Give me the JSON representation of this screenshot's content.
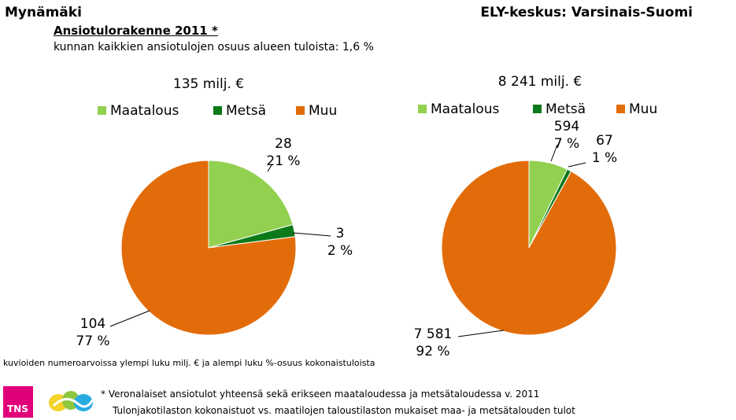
{
  "header": {
    "region_left": "Mynämäki",
    "region_right": "ELY-keskus: Varsinais-Suomi",
    "title": "Ansiotulorakenne 2011 *",
    "subtitle": "kunnan kaikkien ansiotulojen osuus alueen tuloista: 1,6 %"
  },
  "colors": {
    "Maatalous": "#92d050",
    "Metsä": "#0c7a1a",
    "Muu": "#e36c0a"
  },
  "chart_data": [
    {
      "type": "pie",
      "title": "135 milj. €",
      "legend_position": "top",
      "slices": [
        {
          "category": "Maatalous",
          "value": 28,
          "value_label": "28",
          "percent_label": "21 %"
        },
        {
          "category": "Metsä",
          "value": 3,
          "value_label": "3",
          "percent_label": "2 %"
        },
        {
          "category": "Muu",
          "value": 104,
          "value_label": "104",
          "percent_label": "77 %"
        }
      ]
    },
    {
      "type": "pie",
      "title": "8 241 milj. €",
      "legend_position": "top",
      "slices": [
        {
          "category": "Maatalous",
          "value": 594,
          "value_label": "594",
          "percent_label": "7 %"
        },
        {
          "category": "Metsä",
          "value": 67,
          "value_label": "67",
          "percent_label": "1 %"
        },
        {
          "category": "Muu",
          "value": 7581,
          "value_label": "7 581",
          "percent_label": "92 %"
        }
      ]
    }
  ],
  "footer": {
    "note": "kuvioiden numeroarvoissa ylempi luku milj. € ja alempi luku %-osuus kokonaistuloista",
    "footnote_1": "* Veronalaiset ansiotulot yhteensä sekä erikseen maataloudessa ja metsätaloudessa v. 2011",
    "footnote_2": "Tulonjakotilaston kokonaistuot vs. maatilojen taloustilaston mukaiset maa- ja metsätalouden tulot",
    "logo_text": "TNS"
  }
}
